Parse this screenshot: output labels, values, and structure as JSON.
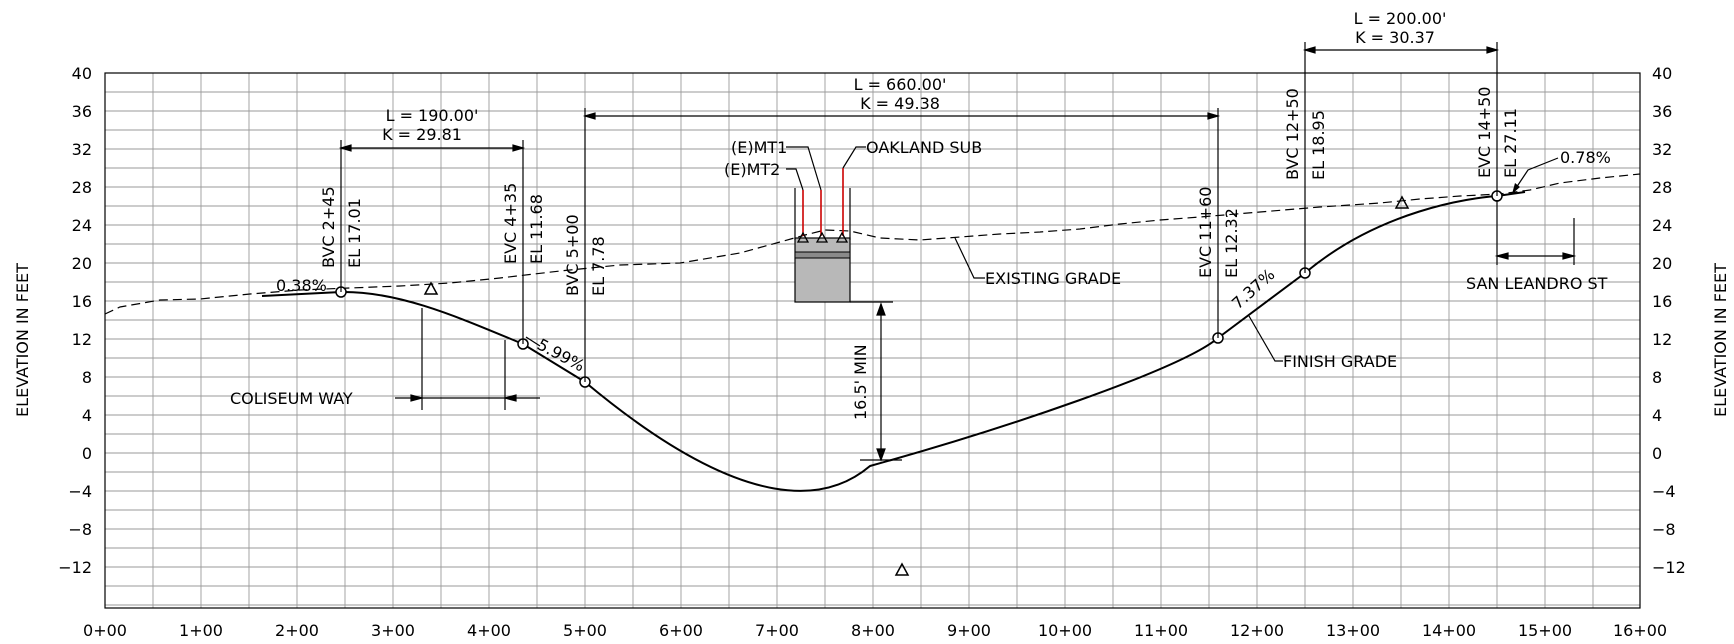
{
  "y_axis_label": "ELEVATION IN FEET",
  "y_ticks": [
    "40",
    "36",
    "32",
    "28",
    "24",
    "20",
    "16",
    "12",
    "8",
    "4",
    "0",
    "−4",
    "−8",
    "−12"
  ],
  "x_ticks": [
    "0+00",
    "1+00",
    "2+00",
    "3+00",
    "4+00",
    "5+00",
    "6+00",
    "7+00",
    "8+00",
    "9+00",
    "10+00",
    "11+00",
    "12+00",
    "13+00",
    "14+00",
    "15+00",
    "16+00"
  ],
  "vertical_curves": [
    {
      "L": "L  =  190.00'",
      "K": "K  =  29.81"
    },
    {
      "L": "L  =  660.00'",
      "K": "K  =  49.38"
    },
    {
      "L": "L  =  200.00'",
      "K": "K  =  30.37"
    }
  ],
  "stations": [
    {
      "sta": "BVC  2+45",
      "el": "EL  17.01"
    },
    {
      "sta": "EVC  4+35",
      "el": "EL  11.68"
    },
    {
      "sta": "BVC  5+00",
      "el": "EL  7.78"
    },
    {
      "sta": "EVC  11+60",
      "el": "EL  12.32"
    },
    {
      "sta": "BVC  12+50",
      "el": "EL  18.95"
    },
    {
      "sta": "EVC  14+50",
      "el": "EL  27.11"
    }
  ],
  "grades": [
    "0.38%",
    "5.99%",
    "7.37%",
    "0.78%"
  ],
  "callouts": {
    "mt1": "(E)MT1",
    "mt2": "(E)MT2",
    "oakland": "OAKLAND  SUB",
    "existing": "EXISTING  GRADE",
    "finish": "FINISH  GRADE",
    "coliseum": "COLISEUM  WAY",
    "san_leandro": "SAN  LEANDRO  ST",
    "clearance": "16.5'  MIN"
  }
}
